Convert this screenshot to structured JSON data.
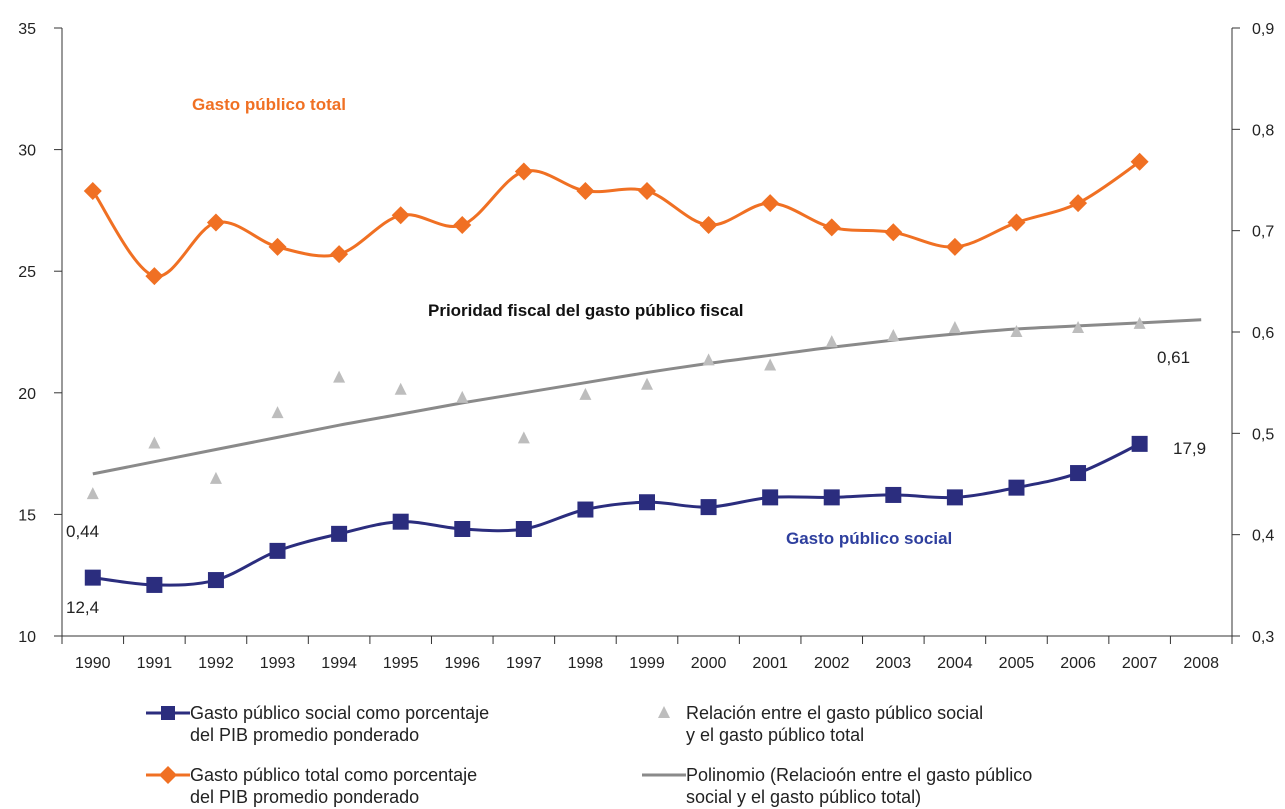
{
  "chart_data": {
    "type": "line",
    "title": "",
    "x": [
      "1990",
      "1991",
      "1992",
      "1993",
      "1994",
      "1995",
      "1996",
      "1997",
      "1998",
      "1999",
      "2000",
      "2001",
      "2002",
      "2003",
      "2004",
      "2005",
      "2006",
      "2007",
      "2008"
    ],
    "y_left": {
      "ylim": [
        10,
        35
      ],
      "ticks": [
        "10",
        "15",
        "20",
        "25",
        "30",
        "35"
      ]
    },
    "y_right": {
      "ylim": [
        0.3,
        0.9
      ],
      "ticks": [
        "0,3",
        "0,4",
        "0,5",
        "0,6",
        "0,7",
        "0,8",
        "0,9"
      ]
    },
    "grid": false,
    "series": [
      {
        "name": "Gasto público social como porcentaje del PIB promedio ponderado",
        "short_label": "Gasto público social",
        "axis": "left",
        "color": "#2b2d7e",
        "marker": "square",
        "values": [
          12.4,
          12.1,
          12.3,
          13.5,
          14.2,
          14.7,
          14.4,
          14.4,
          15.2,
          15.5,
          15.3,
          15.7,
          15.7,
          15.8,
          15.7,
          16.1,
          16.7,
          17.9,
          null
        ]
      },
      {
        "name": "Gasto público total como porcentaje del PIB promedio ponderado",
        "short_label": "Gasto público total",
        "axis": "left",
        "color": "#f07023",
        "marker": "diamond",
        "values": [
          28.3,
          24.8,
          27.0,
          26.0,
          25.7,
          27.3,
          26.9,
          29.1,
          28.3,
          28.3,
          26.9,
          27.8,
          26.8,
          26.6,
          26.0,
          27.0,
          27.8,
          29.5,
          null
        ]
      },
      {
        "name": "Relación entre el gasto público social y el gasto público total",
        "axis": "right",
        "color": "#bdbdbd",
        "marker": "triangle",
        "values": [
          0.44,
          0.49,
          0.455,
          0.52,
          0.555,
          0.543,
          0.535,
          0.495,
          0.538,
          0.548,
          0.572,
          0.567,
          0.59,
          0.596,
          0.604,
          0.6,
          0.604,
          0.608,
          null
        ]
      },
      {
        "name": "Polinomio (Relacioón entre el gasto público social y el gasto público total)",
        "axis": "right",
        "color": "#8a8a8a",
        "marker": "none",
        "values": [
          0.46,
          0.472,
          0.484,
          0.496,
          0.508,
          0.519,
          0.53,
          0.54,
          0.55,
          0.56,
          0.569,
          0.577,
          0.585,
          0.592,
          0.598,
          0.603,
          0.606,
          0.609,
          0.612
        ]
      }
    ],
    "annotations": {
      "total_label": "Gasto público total",
      "social_label": "Gasto público social",
      "ratio_label": "Prioridad fiscal del gasto público fiscal",
      "start_ratio": "0,44",
      "end_ratio": "0,61",
      "start_social": "12,4",
      "end_social": "17,9"
    },
    "legend": {
      "position": "bottom",
      "items": [
        {
          "line1": "Gasto público social como porcentaje",
          "line2": "del PIB promedio ponderado"
        },
        {
          "line1": "Relación entre el gasto público social",
          "line2": "y el gasto público total"
        },
        {
          "line1": "Gasto público total como porcentaje",
          "line2": "del PIB promedio ponderado"
        },
        {
          "line1": "Polinomio (Relacioón entre el gasto público",
          "line2": "social y el gasto público total)"
        }
      ]
    }
  }
}
